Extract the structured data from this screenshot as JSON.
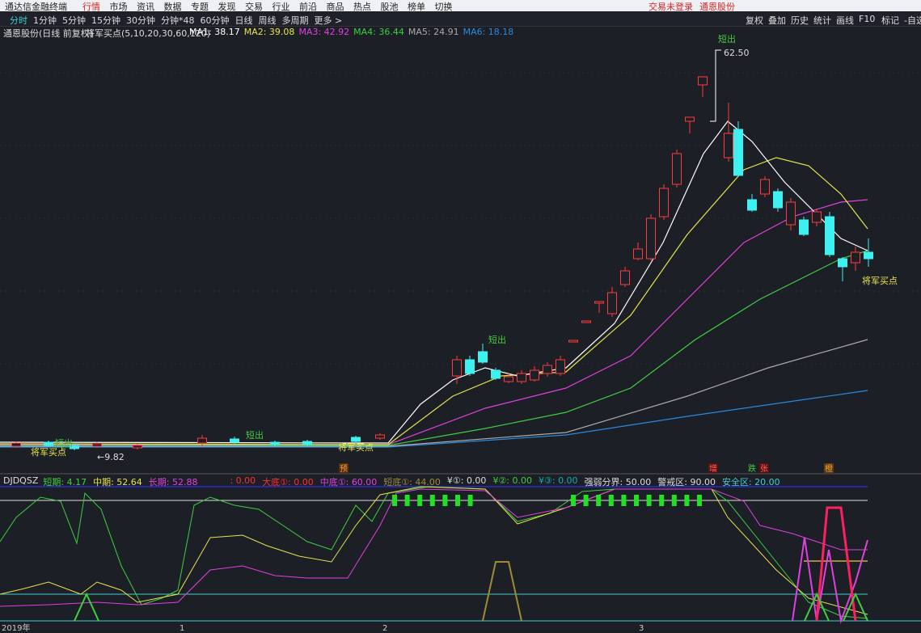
{
  "title_bar": {
    "app": "通达信金融终端",
    "menu": [
      "行情",
      "市场",
      "资讯",
      "数据",
      "专题",
      "发现",
      "交易",
      "行业",
      "前沿",
      "商品",
      "热点",
      "股池",
      "榜单",
      "切换"
    ],
    "status": [
      "交易未登录",
      "通恩股份"
    ]
  },
  "period_bar": {
    "periods": [
      "分时",
      "1分钟",
      "5分钟",
      "15分钟",
      "30分钟",
      "分钟*48",
      "60分钟",
      "日线",
      "周线",
      "多周期",
      "更多 >"
    ],
    "tools": [
      "复权",
      "叠加",
      "历史",
      "统计",
      "画线",
      "F10",
      "标记",
      "-自选"
    ]
  },
  "chart_header": {
    "stock": "通恩股份(日线 前复权)",
    "indicator": "将军买点(5,10,20,30,60,120)",
    "ma": [
      {
        "text": "MA1: 38.17",
        "color": "#ffffff"
      },
      {
        "text": "MA2: 39.08",
        "color": "#e8e34a"
      },
      {
        "text": "MA3: 42.92",
        "color": "#e040e0"
      },
      {
        "text": "MA4: 36.44",
        "color": "#3ecf3e"
      },
      {
        "text": "MA5: 24.91",
        "color": "#aaaaaa"
      },
      {
        "text": "MA6: 18.18",
        "color": "#2a8adf"
      }
    ]
  },
  "annotations": {
    "high": "62.50",
    "low": "←9.82",
    "buy": [
      "将军买点",
      "将军买点",
      "将军买点"
    ],
    "sell": [
      "短出",
      "短出",
      "短出",
      "短出"
    ],
    "signals": [
      "预",
      "增",
      "跌",
      "张",
      "橙"
    ]
  },
  "indicator": {
    "name": "DJDQSZ",
    "items": [
      {
        "text": "短期: 4.17",
        "color": "#3ecf3e"
      },
      {
        "text": "中期: 52.64",
        "color": "#e8e34a"
      },
      {
        "text": "长期: 52.88",
        "color": "#e040e0"
      },
      {
        "text": ": 0.00",
        "color": "#ff3030"
      },
      {
        "text": "大底①: 0.00",
        "color": "#ff3030"
      },
      {
        "text": "中底①: 60.00",
        "color": "#e040e0"
      },
      {
        "text": "短底①: 44.00",
        "color": "#a08a3a"
      },
      {
        "text": "¥①: 0.00",
        "color": "#dddddd"
      },
      {
        "text": "¥②: 0.00",
        "color": "#3ecf3e"
      },
      {
        "text": "¥③: 0.00",
        "color": "#1aa"
      },
      {
        "text": "强弱分界: 50.00",
        "color": "#dddddd"
      },
      {
        "text": "警戒区: 90.00",
        "color": "#dddddd"
      },
      {
        "text": "安全区: 20.00",
        "color": "#3ecfcf"
      }
    ]
  },
  "time_axis": [
    "2019年",
    "1",
    "2",
    "3"
  ]
}
